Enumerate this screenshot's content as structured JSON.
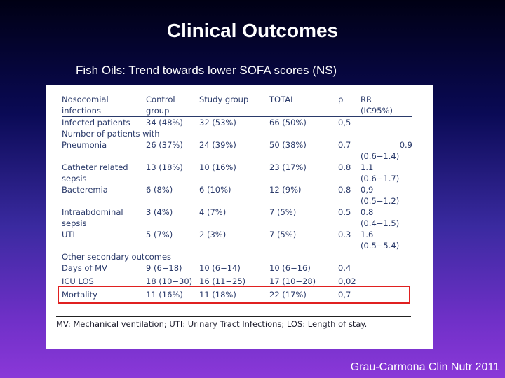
{
  "slide": {
    "title": "Clinical Outcomes",
    "subtitle": "Fish Oils:  Trend towards lower SOFA scores (NS)",
    "citation": "Grau-Carmona Clin Nutr 2011"
  },
  "table": {
    "header": {
      "label1": "Nosocomial",
      "label2": "infections",
      "control1": "Control",
      "control2": "group",
      "study": "Study group",
      "total": "TOTAL",
      "p": "p",
      "rr1": "RR",
      "rr2": "(IC95%)"
    },
    "rows": {
      "infected": {
        "label": "Infected patients",
        "control": "34 (48%)",
        "study": "32 (53%)",
        "total": "66 (50%)",
        "p": "0,5",
        "rr": ""
      },
      "num_with": {
        "label": "Number of patients with"
      },
      "pneumonia": {
        "label": "Pneumonia",
        "control": "26 (37%)",
        "study": "24 (39%)",
        "total": "50 (38%)",
        "p": "0.7",
        "rr": "0.9",
        "ci": "(0.6−1.4)"
      },
      "catheter": {
        "label1": "Catheter related",
        "label2": "sepsis",
        "control": "13 (18%)",
        "study": "10 (16%)",
        "total": "23 (17%)",
        "p": "0.8",
        "rr": "1.1",
        "ci": "(0.6−1.7)"
      },
      "bacteremia": {
        "label": "Bacteremia",
        "control": "6 (8%)",
        "study": "6 (10%)",
        "total": "12 (9%)",
        "p": "0.8",
        "rr": "0,9",
        "ci": "(0.5−1.2)"
      },
      "intraabdominal": {
        "label1": "Intraabdominal",
        "label2": "sepsis",
        "control": "3 (4%)",
        "study": "4 (7%)",
        "total": "7 (5%)",
        "p": "0.5",
        "rr": "0.8",
        "ci": "(0.4−1.5)"
      },
      "uti": {
        "label": "UTI",
        "control": "5 (7%)",
        "study": "2 (3%)",
        "total": "7 (5%)",
        "p": "0.3",
        "rr": "1.6",
        "ci": "(0.5−5.4)"
      },
      "other": {
        "label": "Other secondary outcomes"
      },
      "days_mv": {
        "label": "Days of MV",
        "control": "9 (6−18)",
        "study": "10 (6−14)",
        "total": "10 (6−16)",
        "p": "0.4"
      },
      "icu_los": {
        "label": "ICU LOS",
        "control": "18 (10−30)",
        "study": "16 (11−25)",
        "total": "17 (10−28)",
        "p": "0,02"
      },
      "mortality": {
        "label": "Mortality",
        "control": "11 (16%)",
        "study": "11 (18%)",
        "total": "22 (17%)",
        "p": "0,7"
      }
    },
    "footnote": "MV: Mechanical ventilation; UTI: Urinary Tract Infections; LOS: Length of stay."
  }
}
